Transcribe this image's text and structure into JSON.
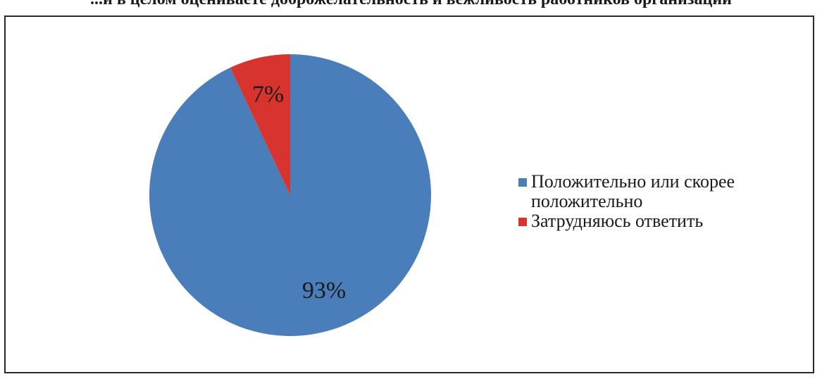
{
  "header": {
    "title": "...и в целом оцениваете доброжелательность и вежливость работников организации"
  },
  "chart_data": {
    "type": "pie",
    "title": "",
    "slices": [
      {
        "label": "Положительно или скорее положительно",
        "value": 93,
        "value_label": "93%",
        "color": "#4a7ebb"
      },
      {
        "label": "Затрудняюсь ответить",
        "value": 7,
        "value_label": "7%",
        "color": "#d7342f"
      }
    ],
    "legend": {
      "position": "right",
      "items": [
        {
          "label": "Положительно или скорее положительно",
          "color": "#4a7ebb"
        },
        {
          "label": "Затрудняюсь ответить",
          "color": "#d7342f"
        }
      ]
    }
  }
}
